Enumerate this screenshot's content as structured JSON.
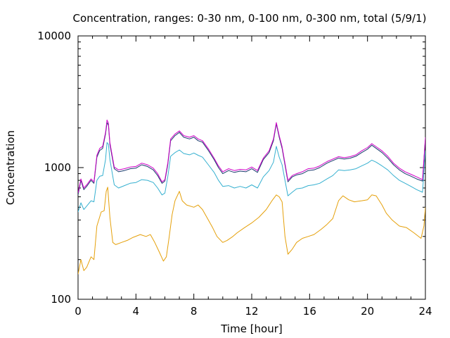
{
  "chart_data": {
    "type": "line",
    "title": "Concentration, ranges: 0-30 nm, 0-100 nm, 0-300 nm, total (5/9/1)",
    "xlabel": "Time [hour]",
    "ylabel": "Concentration",
    "xlim": [
      0,
      24
    ],
    "ylim": [
      100,
      10000
    ],
    "yscale": "log",
    "grid": false,
    "legend": "none",
    "x_ticks": [
      0,
      4,
      8,
      12,
      16,
      20,
      24
    ],
    "x_tick_labels": [
      "0",
      "4",
      "8",
      "12",
      "16",
      "20",
      "24"
    ],
    "y_ticks": [
      100,
      1000,
      10000
    ],
    "y_tick_labels": [
      "100",
      "1000",
      "10000"
    ],
    "series": [
      {
        "color": "#e5a00a",
        "points": [
          [
            0,
            155
          ],
          [
            0.2,
            200
          ],
          [
            0.4,
            165
          ],
          [
            0.6,
            175
          ],
          [
            0.9,
            210
          ],
          [
            1.1,
            200
          ],
          [
            1.3,
            360
          ],
          [
            1.6,
            460
          ],
          [
            1.8,
            470
          ],
          [
            1.95,
            660
          ],
          [
            2.05,
            710
          ],
          [
            2.2,
            420
          ],
          [
            2.4,
            270
          ],
          [
            2.6,
            260
          ],
          [
            3.0,
            270
          ],
          [
            3.4,
            280
          ],
          [
            3.8,
            295
          ],
          [
            4.3,
            310
          ],
          [
            4.7,
            300
          ],
          [
            5.0,
            310
          ],
          [
            5.3,
            270
          ],
          [
            5.6,
            230
          ],
          [
            5.9,
            195
          ],
          [
            6.1,
            210
          ],
          [
            6.3,
            300
          ],
          [
            6.5,
            440
          ],
          [
            6.7,
            560
          ],
          [
            7.0,
            660
          ],
          [
            7.2,
            560
          ],
          [
            7.5,
            520
          ],
          [
            8.0,
            500
          ],
          [
            8.3,
            520
          ],
          [
            8.6,
            480
          ],
          [
            9.0,
            400
          ],
          [
            9.3,
            350
          ],
          [
            9.6,
            300
          ],
          [
            10.0,
            270
          ],
          [
            10.3,
            280
          ],
          [
            10.7,
            300
          ],
          [
            11.0,
            320
          ],
          [
            11.5,
            350
          ],
          [
            12.0,
            380
          ],
          [
            12.5,
            420
          ],
          [
            13.0,
            480
          ],
          [
            13.4,
            560
          ],
          [
            13.7,
            620
          ],
          [
            13.9,
            600
          ],
          [
            14.1,
            550
          ],
          [
            14.3,
            300
          ],
          [
            14.5,
            220
          ],
          [
            14.8,
            240
          ],
          [
            15.1,
            270
          ],
          [
            15.5,
            290
          ],
          [
            15.9,
            300
          ],
          [
            16.3,
            310
          ],
          [
            16.8,
            340
          ],
          [
            17.2,
            370
          ],
          [
            17.6,
            410
          ],
          [
            18.0,
            560
          ],
          [
            18.3,
            610
          ],
          [
            18.7,
            570
          ],
          [
            19.1,
            550
          ],
          [
            19.6,
            560
          ],
          [
            20.0,
            570
          ],
          [
            20.3,
            620
          ],
          [
            20.6,
            610
          ],
          [
            21.0,
            520
          ],
          [
            21.3,
            450
          ],
          [
            21.7,
            400
          ],
          [
            22.2,
            360
          ],
          [
            22.7,
            350
          ],
          [
            23.2,
            320
          ],
          [
            23.7,
            290
          ],
          [
            23.9,
            360
          ],
          [
            24.0,
            500
          ]
        ]
      },
      {
        "color": "#35b0d0",
        "points": [
          [
            0,
            460
          ],
          [
            0.2,
            540
          ],
          [
            0.4,
            480
          ],
          [
            0.6,
            510
          ],
          [
            0.9,
            560
          ],
          [
            1.1,
            550
          ],
          [
            1.3,
            800
          ],
          [
            1.5,
            860
          ],
          [
            1.7,
            870
          ],
          [
            1.9,
            1150
          ],
          [
            2.0,
            1550
          ],
          [
            2.1,
            1500
          ],
          [
            2.2,
            1150
          ],
          [
            2.5,
            740
          ],
          [
            2.8,
            700
          ],
          [
            3.2,
            730
          ],
          [
            3.6,
            760
          ],
          [
            4.0,
            770
          ],
          [
            4.4,
            810
          ],
          [
            4.8,
            800
          ],
          [
            5.2,
            770
          ],
          [
            5.5,
            700
          ],
          [
            5.8,
            620
          ],
          [
            6.0,
            640
          ],
          [
            6.2,
            850
          ],
          [
            6.4,
            1220
          ],
          [
            6.7,
            1300
          ],
          [
            7.0,
            1360
          ],
          [
            7.3,
            1280
          ],
          [
            7.7,
            1250
          ],
          [
            8.0,
            1290
          ],
          [
            8.3,
            1240
          ],
          [
            8.6,
            1200
          ],
          [
            9.0,
            1050
          ],
          [
            9.4,
            920
          ],
          [
            9.7,
            800
          ],
          [
            10.0,
            720
          ],
          [
            10.4,
            730
          ],
          [
            10.8,
            700
          ],
          [
            11.2,
            720
          ],
          [
            11.6,
            700
          ],
          [
            12.0,
            740
          ],
          [
            12.4,
            700
          ],
          [
            12.8,
            850
          ],
          [
            13.2,
            950
          ],
          [
            13.5,
            1100
          ],
          [
            13.7,
            1450
          ],
          [
            13.9,
            1200
          ],
          [
            14.1,
            1050
          ],
          [
            14.3,
            800
          ],
          [
            14.5,
            610
          ],
          [
            14.8,
            650
          ],
          [
            15.1,
            690
          ],
          [
            15.5,
            700
          ],
          [
            15.9,
            730
          ],
          [
            16.3,
            740
          ],
          [
            16.7,
            760
          ],
          [
            17.2,
            820
          ],
          [
            17.6,
            870
          ],
          [
            18.0,
            960
          ],
          [
            18.4,
            950
          ],
          [
            18.8,
            960
          ],
          [
            19.2,
            980
          ],
          [
            19.6,
            1030
          ],
          [
            20.0,
            1080
          ],
          [
            20.3,
            1140
          ],
          [
            20.6,
            1100
          ],
          [
            21.0,
            1030
          ],
          [
            21.4,
            960
          ],
          [
            21.8,
            870
          ],
          [
            22.2,
            800
          ],
          [
            22.6,
            760
          ],
          [
            23.0,
            720
          ],
          [
            23.4,
            680
          ],
          [
            23.8,
            650
          ],
          [
            24.0,
            1350
          ]
        ]
      },
      {
        "color": "#1a3a6e",
        "points": [
          [
            0,
            620
          ],
          [
            0.2,
            800
          ],
          [
            0.4,
            680
          ],
          [
            0.6,
            720
          ],
          [
            0.9,
            800
          ],
          [
            1.1,
            760
          ],
          [
            1.3,
            1200
          ],
          [
            1.5,
            1350
          ],
          [
            1.7,
            1400
          ],
          [
            1.9,
            1800
          ],
          [
            2.0,
            2200
          ],
          [
            2.1,
            2100
          ],
          [
            2.2,
            1500
          ],
          [
            2.5,
            980
          ],
          [
            2.8,
            930
          ],
          [
            3.2,
            950
          ],
          [
            3.6,
            980
          ],
          [
            4.0,
            990
          ],
          [
            4.4,
            1050
          ],
          [
            4.8,
            1020
          ],
          [
            5.2,
            960
          ],
          [
            5.5,
            870
          ],
          [
            5.8,
            760
          ],
          [
            6.0,
            790
          ],
          [
            6.2,
            1050
          ],
          [
            6.4,
            1600
          ],
          [
            6.7,
            1750
          ],
          [
            7.0,
            1850
          ],
          [
            7.3,
            1700
          ],
          [
            7.7,
            1650
          ],
          [
            8.0,
            1700
          ],
          [
            8.3,
            1600
          ],
          [
            8.6,
            1560
          ],
          [
            9.0,
            1350
          ],
          [
            9.4,
            1150
          ],
          [
            9.7,
            1000
          ],
          [
            10.0,
            900
          ],
          [
            10.4,
            950
          ],
          [
            10.8,
            920
          ],
          [
            11.2,
            940
          ],
          [
            11.6,
            930
          ],
          [
            12.0,
            980
          ],
          [
            12.4,
            920
          ],
          [
            12.8,
            1150
          ],
          [
            13.2,
            1300
          ],
          [
            13.5,
            1600
          ],
          [
            13.7,
            2150
          ],
          [
            13.9,
            1700
          ],
          [
            14.1,
            1400
          ],
          [
            14.3,
            1050
          ],
          [
            14.5,
            780
          ],
          [
            14.8,
            850
          ],
          [
            15.1,
            880
          ],
          [
            15.5,
            900
          ],
          [
            15.9,
            950
          ],
          [
            16.3,
            960
          ],
          [
            16.7,
            1000
          ],
          [
            17.2,
            1080
          ],
          [
            17.6,
            1130
          ],
          [
            18.0,
            1180
          ],
          [
            18.4,
            1160
          ],
          [
            18.8,
            1180
          ],
          [
            19.2,
            1220
          ],
          [
            19.6,
            1300
          ],
          [
            20.0,
            1380
          ],
          [
            20.3,
            1480
          ],
          [
            20.6,
            1400
          ],
          [
            21.0,
            1300
          ],
          [
            21.4,
            1180
          ],
          [
            21.8,
            1050
          ],
          [
            22.2,
            960
          ],
          [
            22.6,
            900
          ],
          [
            23.0,
            860
          ],
          [
            23.4,
            820
          ],
          [
            23.8,
            790
          ],
          [
            24.0,
            1650
          ]
        ]
      },
      {
        "color": "#d000c8",
        "points": [
          [
            0,
            640
          ],
          [
            0.2,
            820
          ],
          [
            0.4,
            700
          ],
          [
            0.6,
            740
          ],
          [
            0.9,
            820
          ],
          [
            1.1,
            780
          ],
          [
            1.3,
            1240
          ],
          [
            1.5,
            1400
          ],
          [
            1.7,
            1450
          ],
          [
            1.9,
            1850
          ],
          [
            2.0,
            2300
          ],
          [
            2.1,
            2180
          ],
          [
            2.2,
            1550
          ],
          [
            2.5,
            1010
          ],
          [
            2.8,
            960
          ],
          [
            3.2,
            980
          ],
          [
            3.6,
            1010
          ],
          [
            4.0,
            1020
          ],
          [
            4.4,
            1080
          ],
          [
            4.8,
            1050
          ],
          [
            5.2,
            990
          ],
          [
            5.5,
            900
          ],
          [
            5.8,
            780
          ],
          [
            6.0,
            810
          ],
          [
            6.2,
            1080
          ],
          [
            6.4,
            1650
          ],
          [
            6.7,
            1800
          ],
          [
            7.0,
            1900
          ],
          [
            7.3,
            1750
          ],
          [
            7.7,
            1700
          ],
          [
            8.0,
            1750
          ],
          [
            8.3,
            1650
          ],
          [
            8.6,
            1600
          ],
          [
            9.0,
            1390
          ],
          [
            9.4,
            1180
          ],
          [
            9.7,
            1030
          ],
          [
            10.0,
            930
          ],
          [
            10.4,
            980
          ],
          [
            10.8,
            950
          ],
          [
            11.2,
            970
          ],
          [
            11.6,
            960
          ],
          [
            12.0,
            1010
          ],
          [
            12.4,
            950
          ],
          [
            12.8,
            1180
          ],
          [
            13.2,
            1340
          ],
          [
            13.5,
            1650
          ],
          [
            13.7,
            2200
          ],
          [
            13.9,
            1750
          ],
          [
            14.1,
            1440
          ],
          [
            14.3,
            1080
          ],
          [
            14.5,
            800
          ],
          [
            14.8,
            870
          ],
          [
            15.1,
            900
          ],
          [
            15.5,
            930
          ],
          [
            15.9,
            980
          ],
          [
            16.3,
            990
          ],
          [
            16.7,
            1030
          ],
          [
            17.2,
            1110
          ],
          [
            17.6,
            1160
          ],
          [
            18.0,
            1210
          ],
          [
            18.4,
            1190
          ],
          [
            18.8,
            1210
          ],
          [
            19.2,
            1250
          ],
          [
            19.6,
            1340
          ],
          [
            20.0,
            1420
          ],
          [
            20.3,
            1520
          ],
          [
            20.6,
            1440
          ],
          [
            21.0,
            1340
          ],
          [
            21.4,
            1220
          ],
          [
            21.8,
            1080
          ],
          [
            22.2,
            990
          ],
          [
            22.6,
            930
          ],
          [
            23.0,
            890
          ],
          [
            23.4,
            850
          ],
          [
            23.8,
            810
          ],
          [
            24.0,
            1700
          ]
        ]
      }
    ]
  }
}
